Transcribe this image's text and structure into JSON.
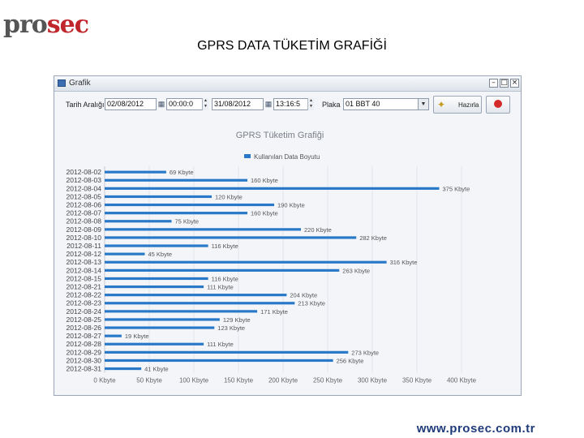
{
  "logo": {
    "part1": "pro",
    "part2": "sec"
  },
  "slide": {
    "title": "GPRS DATA TÜKETİM GRAFİĞİ",
    "footer": "www.prosec.com.tr"
  },
  "window": {
    "title": "Grafik",
    "min_icon": "minimize-icon",
    "max_icon": "maximize-icon",
    "close_icon": "close-icon"
  },
  "toolbar": {
    "date_range_label": "Tarih Aralığı",
    "start_date": "02/08/2012",
    "start_time": "00:00:0",
    "end_date": "31/08/2012",
    "end_time": "13:16:5",
    "plate_label": "Plaka",
    "plate_value": "01 BBT 40",
    "prepare_label": "Hazırla"
  },
  "chart_data": {
    "type": "bar",
    "orientation": "horizontal",
    "title": "GPRS Tüketim Grafiği",
    "legend": [
      {
        "name": "Kullanılan Data Boyutu",
        "color": "#2a79c8"
      }
    ],
    "legend_position": "top",
    "categories": [
      "2012-08-02",
      "2012-08-03",
      "2012-08-04",
      "2012-08-05",
      "2012-08-06",
      "2012-08-07",
      "2012-08-08",
      "2012-08-09",
      "2012-08-10",
      "2012-08-11",
      "2012-08-12",
      "2012-08-13",
      "2012-08-14",
      "2012-08-15",
      "2012-08-21",
      "2012-08-22",
      "2012-08-23",
      "2012-08-24",
      "2012-08-25",
      "2012-08-26",
      "2012-08-27",
      "2012-08-28",
      "2012-08-29",
      "2012-08-30",
      "2012-08-31"
    ],
    "values": [
      69,
      160,
      375,
      120,
      190,
      160,
      75,
      220,
      282,
      116,
      45,
      316,
      263,
      116,
      111,
      204,
      213,
      171,
      129,
      123,
      19,
      111,
      273,
      256,
      41
    ],
    "value_labels": [
      "69 Kbyte",
      "160 Kbyte",
      "375 Kbyte",
      "120 Kbyte",
      "190 Kbyte",
      "160 Kbyte",
      "75 Kbyte",
      "220 Kbyte",
      "282 Kbyte",
      "116 Kbyte",
      "45 Kbyte",
      "316 Kbyte",
      "263 Kbyte",
      "116 Kbyte",
      "111 Kbyte",
      "204 Kbyte",
      "213 Kbyte",
      "171 Kbyte",
      "129 Kbyte",
      "123 Kbyte",
      "19 Kbyte",
      "111 Kbyte",
      "273 Kbyte",
      "256 Kbyte",
      "41 Kbyte"
    ],
    "xticks": [
      "0 Kbyte",
      "50 Kbyte",
      "100 Kbyte",
      "150 Kbyte",
      "200 Kbyte",
      "250 Kbyte",
      "300 Kbyte",
      "350 Kbyte",
      "400 Kbyte"
    ],
    "xlim": [
      0,
      400
    ],
    "grid": true,
    "bar_color": "#2a79c8"
  }
}
